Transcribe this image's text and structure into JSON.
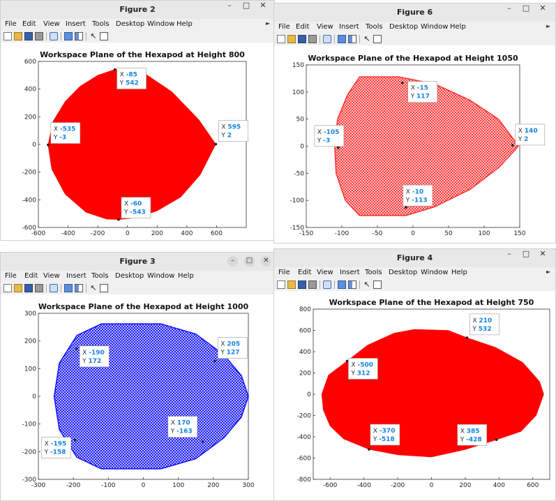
{
  "menu_labels": [
    "File",
    "Edit",
    "View",
    "Insert",
    "Tools",
    "Desktop",
    "Window",
    "Help"
  ],
  "windows": [
    {
      "id": "fig2",
      "title": "Figure 2",
      "controls": [
        "–",
        "□",
        "✕"
      ],
      "plot_title": "Workspace Plane of the Hexapod at Height 800",
      "fill_color": "#ff0000",
      "pattern": "solid",
      "xlim": [
        -600,
        800
      ],
      "ylim": [
        -600,
        600
      ],
      "xticks": [
        -600,
        -400,
        -200,
        0,
        200,
        400,
        600
      ],
      "yticks": [
        -600,
        -400,
        -200,
        0,
        200,
        400,
        600
      ],
      "boundary": [
        [
          -85,
          542
        ],
        [
          -200,
          500
        ],
        [
          -320,
          420
        ],
        [
          -420,
          310
        ],
        [
          -500,
          170
        ],
        [
          -535,
          -3
        ],
        [
          -510,
          -180
        ],
        [
          -420,
          -360
        ],
        [
          -280,
          -490
        ],
        [
          -140,
          -540
        ],
        [
          -60,
          -543
        ],
        [
          60,
          -530
        ],
        [
          200,
          -480
        ],
        [
          360,
          -380
        ],
        [
          490,
          -220
        ],
        [
          595,
          2
        ],
        [
          480,
          180
        ],
        [
          300,
          380
        ],
        [
          120,
          510
        ],
        [
          -20,
          545
        ]
      ],
      "datatips": [
        {
          "x": "-85",
          "y": "542"
        },
        {
          "x": "595",
          "y": "2"
        },
        {
          "x": "-535",
          "y": "-3"
        },
        {
          "x": "-60",
          "y": "-543"
        }
      ]
    },
    {
      "id": "fig6",
      "title": "Figure 6",
      "controls": [
        "–",
        "□",
        "✕"
      ],
      "plot_title": "Workspace Plane of the Hexapod at Height 1050",
      "fill_color": "#ff3030",
      "pattern": "crosshatch",
      "xlim": [
        -150,
        150
      ],
      "ylim": [
        -150,
        150
      ],
      "xticks": [
        -150,
        -100,
        -50,
        0,
        50,
        100,
        150
      ],
      "yticks": [
        -150,
        -100,
        -50,
        0,
        50,
        100,
        150
      ],
      "boundary": [
        [
          -75,
          128
        ],
        [
          -20,
          128
        ],
        [
          30,
          115
        ],
        [
          80,
          85
        ],
        [
          120,
          50
        ],
        [
          140,
          15
        ],
        [
          148,
          0
        ],
        [
          140,
          -12
        ],
        [
          120,
          -40
        ],
        [
          80,
          -80
        ],
        [
          30,
          -112
        ],
        [
          -10,
          -128
        ],
        [
          -75,
          -128
        ],
        [
          -95,
          -100
        ],
        [
          -108,
          -50
        ],
        [
          -110,
          0
        ],
        [
          -106,
          50
        ],
        [
          -92,
          95
        ]
      ],
      "datatips": [
        {
          "x": "-15",
          "y": "117"
        },
        {
          "x": "-105",
          "y": "-3"
        },
        {
          "x": "140",
          "y": "2"
        },
        {
          "x": "-10",
          "y": "-113"
        }
      ]
    },
    {
      "id": "fig3",
      "title": "Figure 3",
      "controls": [
        "–",
        "□",
        "✕"
      ],
      "plot_title": "Workspace Plane of the Hexapod at Height 1000",
      "fill_color": "#1010ff",
      "pattern": "crosshatch",
      "xlim": [
        -300,
        300
      ],
      "ylim": [
        -300,
        300
      ],
      "xticks": [
        -300,
        -200,
        -100,
        0,
        100,
        200,
        300
      ],
      "yticks": [
        -300,
        -200,
        -100,
        0,
        100,
        200,
        300
      ],
      "boundary": [
        [
          -120,
          262
        ],
        [
          50,
          262
        ],
        [
          150,
          225
        ],
        [
          230,
          150
        ],
        [
          280,
          75
        ],
        [
          300,
          0
        ],
        [
          280,
          -75
        ],
        [
          230,
          -150
        ],
        [
          150,
          -225
        ],
        [
          50,
          -262
        ],
        [
          -120,
          -262
        ],
        [
          -190,
          -220
        ],
        [
          -240,
          -120
        ],
        [
          -255,
          0
        ],
        [
          -240,
          120
        ],
        [
          -190,
          220
        ]
      ],
      "datatips": [
        {
          "x": "-190",
          "y": "172"
        },
        {
          "x": "205",
          "y": "127"
        },
        {
          "x": "-195",
          "y": "-158"
        },
        {
          "x": "170",
          "y": "-163"
        }
      ]
    },
    {
      "id": "fig4",
      "title": "Figure 4",
      "controls": [
        "–",
        "□",
        "✕"
      ],
      "plot_title": "Workspace Plane of the Hexapod at Height 750",
      "fill_color": "#ff0000",
      "pattern": "solid",
      "xlim": [
        -700,
        700
      ],
      "ylim": [
        -800,
        800
      ],
      "xticks": [
        -600,
        -400,
        -200,
        0,
        200,
        400,
        600
      ],
      "yticks": [
        -800,
        -600,
        -400,
        -200,
        0,
        200,
        400,
        600,
        800
      ],
      "boundary": [
        [
          -100,
          610
        ],
        [
          100,
          600
        ],
        [
          210,
          532
        ],
        [
          380,
          440
        ],
        [
          540,
          300
        ],
        [
          640,
          120
        ],
        [
          665,
          0
        ],
        [
          620,
          -200
        ],
        [
          530,
          -350
        ],
        [
          385,
          -428
        ],
        [
          200,
          -520
        ],
        [
          0,
          -590
        ],
        [
          -200,
          -570
        ],
        [
          -370,
          -518
        ],
        [
          -520,
          -420
        ],
        [
          -600,
          -300
        ],
        [
          -640,
          -150
        ],
        [
          -650,
          0
        ],
        [
          -610,
          180
        ],
        [
          -500,
          312
        ],
        [
          -380,
          460
        ],
        [
          -220,
          575
        ]
      ],
      "datatips": [
        {
          "x": "210",
          "y": "532"
        },
        {
          "x": "-500",
          "y": "312"
        },
        {
          "x": "-370",
          "y": "-518"
        },
        {
          "x": "385",
          "y": "-428"
        }
      ]
    }
  ]
}
